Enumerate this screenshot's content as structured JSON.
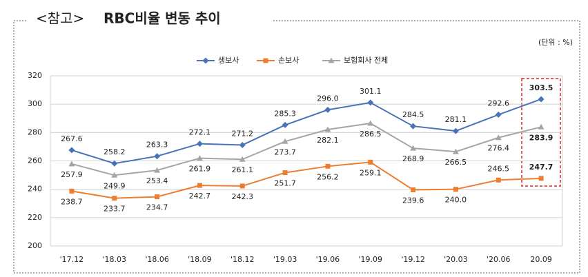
{
  "chart_data": {
    "type": "line",
    "title_tag": "<참고>",
    "title": "RBC비율 변동 추이",
    "unit_note": "(단위 : %)",
    "categories": [
      "'17.12",
      "'18.03",
      "'18.06",
      "'18.09",
      "'18.12",
      "'19.03",
      "'19.06",
      "'19.09",
      "'19.12",
      "'20.03",
      "'20.06",
      "20.09"
    ],
    "series": [
      {
        "name": "생보사",
        "color": "#4a72b8",
        "marker": "diamond",
        "values": [
          267.6,
          258.2,
          263.3,
          272.1,
          271.2,
          285.3,
          296.0,
          301.1,
          284.5,
          281.1,
          292.6,
          303.5
        ],
        "value_labels": [
          "267.6",
          "258.2",
          "263.3",
          "272.1",
          "271.2",
          "285.3",
          "296.0",
          "301.1",
          "284.5",
          "281.1",
          "292.6",
          "303.5"
        ]
      },
      {
        "name": "손보사",
        "color": "#ed7d31",
        "marker": "square",
        "values": [
          238.7,
          233.7,
          234.7,
          242.7,
          242.3,
          251.7,
          256.2,
          259.1,
          239.6,
          240.0,
          246.5,
          247.7
        ],
        "value_labels": [
          "238.7",
          "233.7",
          "234.7",
          "242.7",
          "242.3",
          "251.7",
          "256.2",
          "259.1",
          "239.6",
          "240.0",
          "246.5",
          "247.7"
        ]
      },
      {
        "name": "보험회사 전체",
        "color": "#a5a5a5",
        "marker": "triangle",
        "values": [
          257.9,
          249.9,
          253.4,
          261.9,
          261.1,
          273.7,
          282.1,
          286.5,
          268.9,
          266.5,
          276.4,
          283.9
        ],
        "value_labels": [
          "257.9",
          "249.9",
          "253.4",
          "261.9",
          "261.1",
          "273.7",
          "282.1",
          "286.5",
          "268.9",
          "266.5",
          "276.4",
          "283.9"
        ]
      }
    ],
    "ylim": [
      200,
      320
    ],
    "yticks": [
      200,
      220,
      240,
      260,
      280,
      300,
      320
    ],
    "grid": true,
    "legend": "top"
  }
}
